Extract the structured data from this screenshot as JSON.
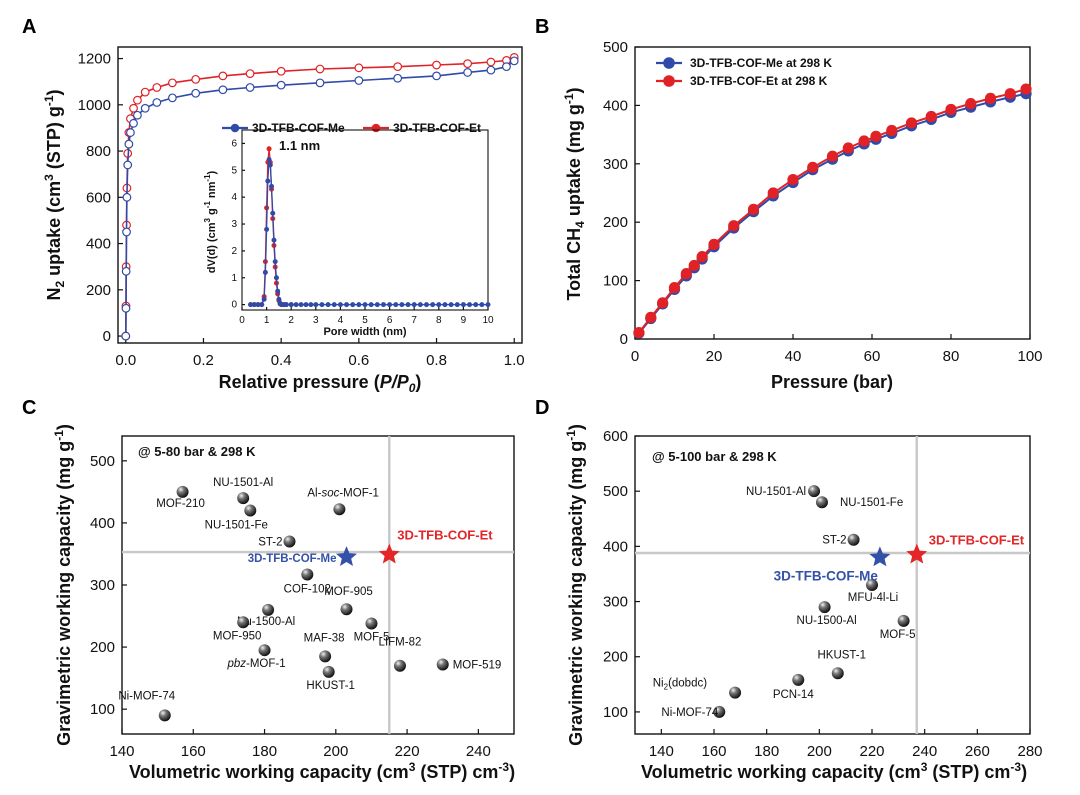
{
  "panels": {
    "a": "A",
    "b": "B",
    "c": "C",
    "d": "D"
  },
  "colors": {
    "me": "#2f4aa8",
    "et": "#e02226",
    "star_me": "#3351a8",
    "star_et": "#e32628",
    "ref_line": "#c8c8c8"
  },
  "chart_data": [
    {
      "id": "A",
      "type": "line",
      "xlabel": "Relative pressure (P/P0)",
      "ylabel": "N2 uptake (cm3 (STP) g-1)",
      "xlim": [
        -0.02,
        1.02
      ],
      "ylim": [
        -30,
        1250
      ],
      "xticks": [
        0.0,
        0.2,
        0.4,
        0.6,
        0.8,
        1.0
      ],
      "xtick_labels": [
        "0.0",
        "0.2",
        "0.4",
        "0.6",
        "0.8",
        "1.0"
      ],
      "yticks": [
        0,
        200,
        400,
        600,
        800,
        1000,
        1200
      ],
      "series": [
        {
          "name": "3D-TFB-COF-Me",
          "color": "#2f4aa8",
          "x": [
            0.0,
            0.0005,
            0.001,
            0.002,
            0.003,
            0.005,
            0.008,
            0.012,
            0.02,
            0.03,
            0.05,
            0.08,
            0.12,
            0.18,
            0.25,
            0.32,
            0.4,
            0.5,
            0.6,
            0.7,
            0.8,
            0.88,
            0.94,
            0.98,
            1.0
          ],
          "y": [
            0,
            120,
            280,
            450,
            600,
            740,
            830,
            880,
            920,
            955,
            985,
            1010,
            1030,
            1050,
            1065,
            1075,
            1085,
            1095,
            1105,
            1115,
            1125,
            1140,
            1150,
            1165,
            1190
          ]
        },
        {
          "name": "3D-TFB-COF-Et",
          "color": "#e02226",
          "x": [
            0.0,
            0.0005,
            0.001,
            0.002,
            0.003,
            0.005,
            0.008,
            0.012,
            0.02,
            0.03,
            0.05,
            0.08,
            0.12,
            0.18,
            0.25,
            0.32,
            0.4,
            0.5,
            0.6,
            0.7,
            0.8,
            0.88,
            0.94,
            0.98,
            1.0
          ],
          "y": [
            0,
            130,
            300,
            480,
            640,
            790,
            880,
            940,
            985,
            1020,
            1055,
            1075,
            1095,
            1110,
            1125,
            1135,
            1145,
            1155,
            1160,
            1165,
            1172,
            1178,
            1185,
            1192,
            1205
          ]
        }
      ],
      "inset": {
        "type": "line",
        "xlabel": "Pore width (nm)",
        "ylabel": "dV(d) (cm3 g-1 nm-1)",
        "annotation": "1.1 nm",
        "xlim": [
          0,
          10
        ],
        "ylim": [
          -0.2,
          6.5
        ],
        "xticks": [
          0,
          1,
          2,
          3,
          4,
          5,
          6,
          7,
          8,
          9,
          10
        ],
        "xtick_labels": [
          "0",
          "1",
          "2",
          "3",
          "4",
          "5",
          "6",
          "7",
          "8",
          "9",
          "10"
        ],
        "yticks": [
          0,
          1,
          2,
          3,
          4,
          5,
          6
        ],
        "series": [
          {
            "name": "3D-TFB-COF-Me",
            "color": "#2f4aa8",
            "x": [
              0.35,
              0.5,
              0.65,
              0.8,
              0.9,
              0.95,
              1.0,
              1.05,
              1.1,
              1.15,
              1.2,
              1.25,
              1.3,
              1.35,
              1.4,
              1.45,
              1.5,
              1.55,
              1.6,
              1.7,
              1.8,
              2.0,
              2.2,
              2.4,
              2.6,
              2.8,
              3.0,
              3.25,
              3.5,
              3.75,
              4.0,
              4.25,
              4.5,
              4.75,
              5.0,
              5.25,
              5.5,
              5.75,
              6.0,
              6.25,
              6.5,
              6.75,
              7.0,
              7.25,
              7.5,
              7.75,
              8.0,
              8.25,
              8.5,
              8.75,
              9.0,
              9.25,
              9.5,
              9.75,
              10.0
            ],
            "y": [
              0,
              0,
              0,
              0,
              0.2,
              1.2,
              2.8,
              4.6,
              5.4,
              5.2,
              4.4,
              3.4,
              2.4,
              1.6,
              1.0,
              0.5,
              0.2,
              0.05,
              0,
              0,
              0,
              0,
              0,
              0,
              0,
              0,
              0,
              0,
              0,
              0,
              0,
              0,
              0,
              0,
              0,
              0,
              0,
              0,
              0,
              0,
              0,
              0,
              0,
              0,
              0,
              0,
              0,
              0,
              0,
              0,
              0,
              0,
              0,
              0,
              0
            ]
          },
          {
            "name": "3D-TFB-COF-Et",
            "color": "#e02226",
            "x": [
              0.35,
              0.5,
              0.65,
              0.8,
              0.9,
              0.95,
              1.0,
              1.05,
              1.1,
              1.15,
              1.2,
              1.25,
              1.3,
              1.35,
              1.4,
              1.45,
              1.5,
              1.55,
              1.6,
              1.7,
              1.8,
              2.0
            ],
            "y": [
              0,
              0,
              0,
              0,
              0.3,
              1.6,
              3.6,
              5.3,
              5.8,
              5.3,
              4.3,
              3.2,
              2.2,
              1.4,
              0.8,
              0.4,
              0.15,
              0.03,
              0,
              0,
              0,
              0
            ]
          }
        ]
      }
    },
    {
      "id": "B",
      "type": "line",
      "xlabel": "Pressure (bar)",
      "ylabel": "Total CH4 uptake (mg g-1)",
      "xlim": [
        0,
        100
      ],
      "ylim": [
        0,
        500
      ],
      "xticks": [
        0,
        20,
        40,
        60,
        80,
        100
      ],
      "yticks": [
        0,
        100,
        200,
        300,
        400,
        500
      ],
      "series": [
        {
          "name": "3D-TFB-COF-Me at 298 K",
          "color": "#2f4aa8",
          "x": [
            1,
            4,
            7,
            10,
            13,
            15,
            17,
            20,
            25,
            30,
            35,
            40,
            45,
            50,
            54,
            58,
            61,
            65,
            70,
            75,
            80,
            85,
            90,
            95,
            99
          ],
          "y": [
            10,
            35,
            60,
            85,
            108,
            122,
            137,
            158,
            190,
            218,
            245,
            268,
            290,
            308,
            322,
            334,
            342,
            352,
            365,
            376,
            388,
            397,
            406,
            414,
            420
          ]
        },
        {
          "name": "3D-TFB-COF-Et at 298 K",
          "color": "#e02226",
          "x": [
            1,
            4,
            7,
            10,
            13,
            15,
            17,
            20,
            25,
            30,
            35,
            40,
            45,
            50,
            54,
            58,
            61,
            65,
            70,
            75,
            80,
            85,
            90,
            95,
            99
          ],
          "y": [
            11,
            37,
            62,
            88,
            112,
            126,
            141,
            162,
            194,
            222,
            250,
            273,
            294,
            313,
            327,
            339,
            347,
            357,
            370,
            381,
            393,
            403,
            412,
            420,
            428
          ]
        }
      ]
    },
    {
      "id": "C",
      "type": "scatter",
      "title": "@ 5-80 bar & 298 K",
      "xlabel": "Volumetric working capacity (cm3 (STP) cm-3)",
      "ylabel": "Gravimetric working capacity (mg g-1)",
      "xlim": [
        140,
        250
      ],
      "ylim": [
        60,
        540
      ],
      "xticks": [
        140,
        160,
        180,
        200,
        220,
        240
      ],
      "yticks": [
        100,
        200,
        300,
        400,
        500
      ],
      "ref_lines": {
        "x": 215,
        "y": 353
      },
      "points": [
        {
          "name": "MOF-210",
          "x": 157,
          "y": 450
        },
        {
          "name": "NU-1501-Al",
          "x": 174,
          "y": 440
        },
        {
          "name": "NU-1501-Fe",
          "x": 176,
          "y": 420
        },
        {
          "name": "Al-soc-MOF-1",
          "x": 201,
          "y": 422
        },
        {
          "name": "ST-2",
          "x": 187,
          "y": 370
        },
        {
          "name": "COF-102",
          "x": 192,
          "y": 317
        },
        {
          "name": "MOF-905",
          "x": 203,
          "y": 261
        },
        {
          "name": "Nu-1500-Al",
          "x": 181,
          "y": 260
        },
        {
          "name": "MOF-950",
          "x": 174,
          "y": 240
        },
        {
          "name": "MOF-5",
          "x": 210,
          "y": 238
        },
        {
          "name": "pbz-MOF-1",
          "x": 180,
          "y": 195
        },
        {
          "name": "MAF-38",
          "x": 197,
          "y": 185
        },
        {
          "name": "HKUST-1",
          "x": 198,
          "y": 160
        },
        {
          "name": "LIFM-82",
          "x": 218,
          "y": 170
        },
        {
          "name": "MOF-519",
          "x": 230,
          "y": 172
        },
        {
          "name": "Ni-MOF-74",
          "x": 152,
          "y": 90
        }
      ],
      "stars": [
        {
          "name": "3D-TFB-COF-Me",
          "x": 203,
          "y": 345
        },
        {
          "name": "3D-TFB-COF-Et",
          "x": 215,
          "y": 349
        }
      ]
    },
    {
      "id": "D",
      "type": "scatter",
      "title": "@ 5-100 bar & 298 K",
      "xlabel": "Volumetric working capacity (cm3 (STP) cm-3)",
      "ylabel": "Gravimetric working capacity (mg g-1)",
      "xlim": [
        130,
        280
      ],
      "ylim": [
        60,
        600
      ],
      "xticks": [
        140,
        160,
        180,
        200,
        220,
        240,
        260,
        280
      ],
      "yticks": [
        100,
        200,
        300,
        400,
        500,
        600
      ],
      "ref_lines": {
        "x": 237,
        "y": 388
      },
      "points": [
        {
          "name": "NU-1501-Al",
          "x": 198,
          "y": 500
        },
        {
          "name": "NU-1501-Fe",
          "x": 201,
          "y": 480
        },
        {
          "name": "ST-2",
          "x": 213,
          "y": 412
        },
        {
          "name": "MFU-4l-Li",
          "x": 220,
          "y": 330
        },
        {
          "name": "NU-1500-Al",
          "x": 202,
          "y": 290
        },
        {
          "name": "MOF-5",
          "x": 232,
          "y": 265
        },
        {
          "name": "HKUST-1",
          "x": 207,
          "y": 170
        },
        {
          "name": "PCN-14",
          "x": 192,
          "y": 158
        },
        {
          "name": "Ni2(dobdc)",
          "x": 168,
          "y": 135
        },
        {
          "name": "Ni-MOF-74",
          "x": 162,
          "y": 100
        }
      ],
      "stars": [
        {
          "name": "3D-TFB-COF-Me",
          "x": 223,
          "y": 380
        },
        {
          "name": "3D-TFB-COF-Et",
          "x": 237,
          "y": 385
        }
      ]
    }
  ]
}
